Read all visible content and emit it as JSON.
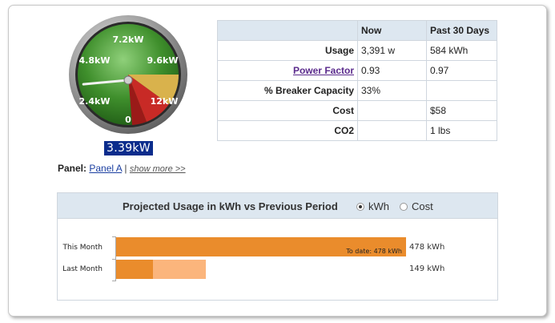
{
  "gauge": {
    "ticks": [
      "7.2kW",
      "4.8kW",
      "9.6kW",
      "2.4kW",
      "12kW",
      "0"
    ],
    "needle_value_kw": 3.39,
    "max_kw": 12,
    "readout": "3.39kW"
  },
  "panel": {
    "label": "Panel:",
    "link": "Panel A",
    "separator": "|",
    "more": "show more >>"
  },
  "stats": {
    "headers": [
      "",
      "Now",
      "Past 30 Days"
    ],
    "rows": [
      {
        "label": "Usage",
        "now": "3,391 w",
        "past": "584 kWh"
      },
      {
        "label": "Power Factor",
        "now": "0.93",
        "past": "0.97"
      },
      {
        "label": "% Breaker Capacity",
        "now": "33%",
        "past": ""
      },
      {
        "label": "Cost",
        "now": "",
        "past": "$58"
      },
      {
        "label": "CO2",
        "now": "",
        "past": "1 lbs"
      }
    ]
  },
  "projected": {
    "title": "Projected Usage in kWh vs Previous Period",
    "options": [
      {
        "label": "kWh",
        "selected": true
      },
      {
        "label": "Cost",
        "selected": false
      }
    ],
    "chart_data": {
      "type": "bar",
      "categories": [
        "This Month",
        "Last Month"
      ],
      "values": [
        478,
        149
      ],
      "value_labels": [
        "478 kWh",
        "149 kWh"
      ],
      "to_date_label": "To date: 478 kWh",
      "colors": {
        "current": "#ea8c2c",
        "previous": "#fbb57c"
      }
    }
  }
}
